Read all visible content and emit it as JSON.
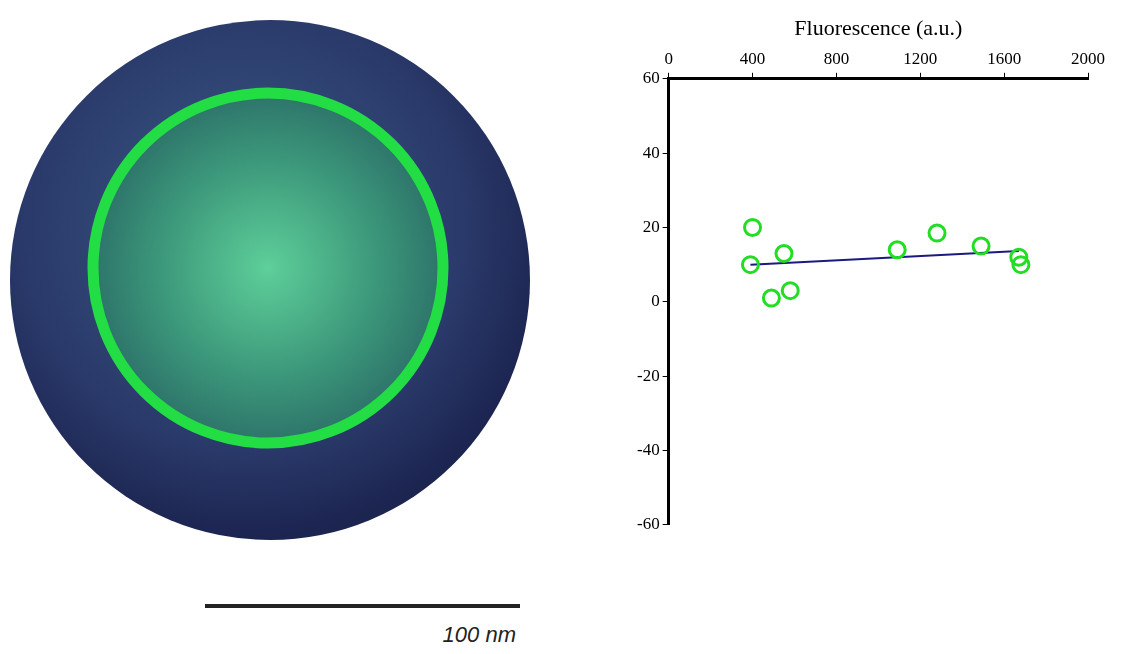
{
  "image": {
    "scale_bar": "100 nm"
  },
  "chart_data": {
    "type": "scatter",
    "x_label": "Fluorescence (a.u.)",
    "xlim": [
      0,
      2000
    ],
    "xticks": [
      0,
      400,
      800,
      1200,
      1600,
      2000
    ],
    "ylim": [
      -60,
      60
    ],
    "yticks": [
      -60,
      -40,
      -20,
      0,
      20,
      40,
      60
    ],
    "grid": false,
    "series": [
      {
        "type": "scatter",
        "color": "#22dd22",
        "marker": "circle",
        "x": [
          390,
          400,
          490,
          550,
          580,
          1090,
          1280,
          1490,
          1670,
          1680
        ],
        "values": [
          10,
          20,
          1,
          13,
          3,
          14,
          18.5,
          15,
          12,
          10
        ]
      },
      {
        "type": "line",
        "color": "#1a1a80",
        "line_style": "solid",
        "x": [
          390,
          1670
        ],
        "values": [
          10,
          13.7
        ]
      }
    ]
  }
}
